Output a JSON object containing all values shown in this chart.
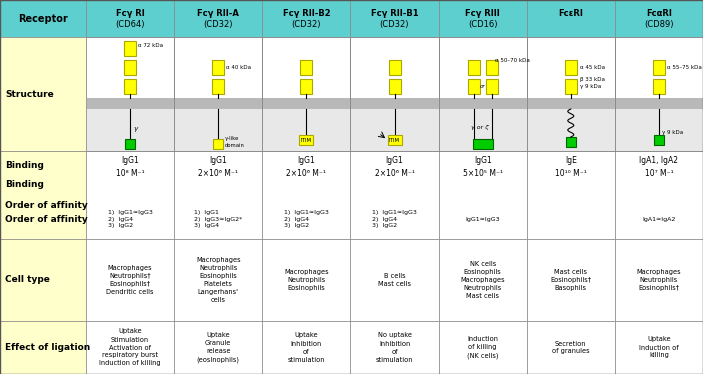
{
  "header_bg": "#5ecfcf",
  "row_label_bg": "#ffffcc",
  "white_bg": "#ffffff",
  "sub_bg": "#e8e8e8",
  "col_headers_line1": [
    "Fcγ RI",
    "Fcγ RII-A",
    "Fcγ RII-B2",
    "Fcγ RII-B1",
    "Fcγ RIII",
    "FcεRI",
    "FcαRI"
  ],
  "col_headers_line2": [
    "(CD64)",
    "(CD32)",
    "(CD32)",
    "(CD32)",
    "(CD16)",
    "",
    "(CD89)"
  ],
  "row_labels": [
    "Receptor",
    "Structure",
    "Binding\n\nOrder of affinity",
    "Cell type",
    "Effect of ligation"
  ],
  "binding_line1": [
    "IgG1",
    "IgG1",
    "IgG1",
    "IgG1",
    "IgG1",
    "IgE",
    "IgA1, IgA2"
  ],
  "binding_line2": [
    "10⁸ M⁻¹",
    "2×10⁶ M⁻¹",
    "2×10⁶ M⁻¹",
    "2×10⁶ M⁻¹",
    "5×10⁵ M⁻¹",
    "10¹⁰ M⁻¹",
    "10⁷ M⁻¹"
  ],
  "binding_line3": [
    "1)  IgG1≈IgG3\n2)  IgG4\n3)  IgG2",
    "1)  IgG1\n2)  IgG3≈IgG2*\n3)  IgG4",
    "1)  IgG1≈IgG3\n2)  IgG4\n3)  IgG2",
    "1)  IgG1≈IgG3\n2)  IgG4\n3)  IgG2",
    "IgG1≈IgG3",
    "",
    "IgA1≈IgA2"
  ],
  "celltype_data": [
    "Macrophages\nNeutrophils†\nEosinophils†\nDendritic cells",
    "Macrophages\nNeutrophils\nEosinophils\nPlatelets\nLangerhans'\ncells",
    "Macrophages\nNeutrophils\nEosinophils",
    "B cells\nMast cells",
    "NK cells\nEosinophils\nMacrophages\nNeutrophils\nMast cells",
    "Mast cells\nEosinophils†\nBasophils",
    "Macrophages\nNeutrophils\nEosinophils†"
  ],
  "ligation_data": [
    "Uptake\nStimulation\nActivation of\nrespiratory burst\nInduction of killing",
    "Uptake\nGranule\nrelease\n(eosinophils)",
    "Uptake\nInhibition\nof\nstimulation",
    "No uptake\nInhibition\nof\nstimulation",
    "Induction\nof killing\n(NK cells)",
    "Secretion\nof granules",
    "Uptake\nInduction of\nkilling"
  ],
  "struct_labels": [
    "α 72 kDa",
    "α 40 kDa",
    "",
    "",
    "α 50–70 kDa",
    "α 45 kDa",
    "α 55–75 kDa"
  ],
  "struct_labels2": [
    "",
    "",
    "",
    "",
    "",
    "β 33 kDa",
    ""
  ],
  "struct_labels3": [
    "",
    "",
    "",
    "",
    "",
    "γ 9 kDa",
    "γ 9 kDa"
  ],
  "below_labels": [
    "γ",
    "γ-like\ndomain",
    "ITIM",
    "ITIM",
    "γ or ζ",
    "",
    ""
  ]
}
